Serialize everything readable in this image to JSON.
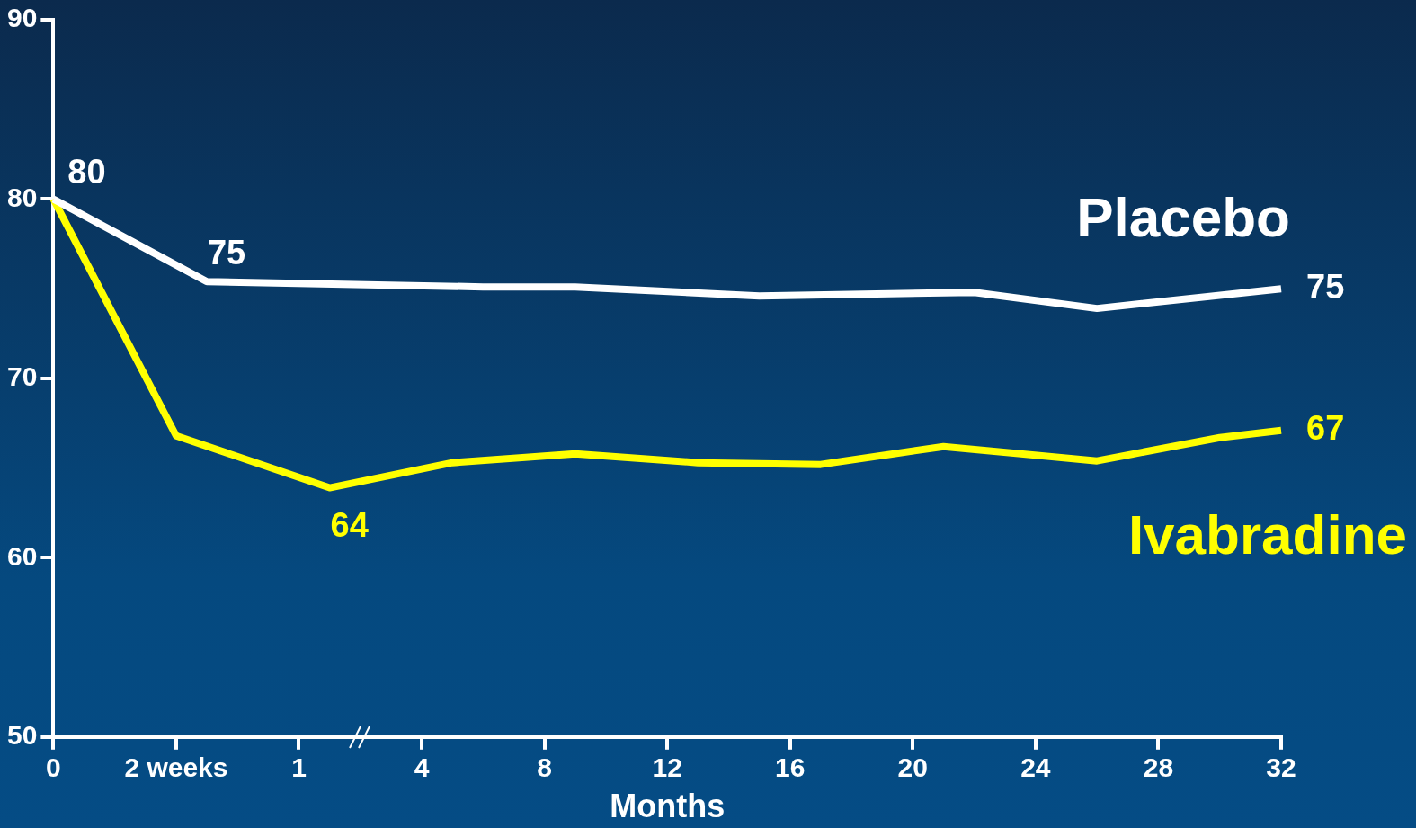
{
  "chart_data": {
    "type": "line",
    "xlabel": "Months",
    "categories": [
      "0",
      null,
      null,
      null,
      "2 weeks",
      null,
      null,
      null,
      "1",
      null,
      null,
      null,
      "4",
      null,
      null,
      null,
      "8",
      null,
      null,
      null,
      "12",
      null,
      null,
      null,
      "16",
      null,
      null,
      null,
      "20",
      null,
      null,
      null,
      "24",
      null,
      null,
      null,
      "28",
      null,
      null,
      null,
      "32"
    ],
    "ylim": [
      50,
      90
    ],
    "yticks": [
      50,
      60,
      70,
      80,
      90
    ],
    "grid": false,
    "marker": "none",
    "line_style": "solid",
    "series": [
      {
        "name": "Placebo",
        "color": "#ffffff",
        "values": [
          80,
          null,
          null,
          null,
          null,
          75.4,
          null,
          null,
          null,
          null,
          null,
          null,
          null,
          null,
          75.1,
          null,
          null,
          75.1,
          null,
          null,
          null,
          null,
          null,
          74.6,
          null,
          null,
          null,
          null,
          null,
          null,
          74.8,
          null,
          null,
          null,
          73.9,
          null,
          null,
          null,
          null,
          null,
          75.0
        ],
        "value_labels": [
          "80",
          null,
          null,
          null,
          null,
          "75",
          null,
          null,
          null,
          null,
          null,
          null,
          null,
          null,
          null,
          null,
          null,
          null,
          null,
          null,
          null,
          null,
          null,
          null,
          null,
          null,
          null,
          null,
          null,
          null,
          null,
          null,
          null,
          null,
          null,
          null,
          null,
          null,
          null,
          null,
          "75"
        ]
      },
      {
        "name": "Ivabradine",
        "color": "#ffff00",
        "values": [
          80,
          null,
          null,
          null,
          66.8,
          null,
          null,
          null,
          null,
          63.9,
          null,
          null,
          null,
          65.3,
          null,
          null,
          null,
          65.8,
          null,
          null,
          null,
          65.3,
          null,
          null,
          null,
          65.2,
          null,
          null,
          null,
          66.2,
          null,
          null,
          null,
          null,
          65.4,
          null,
          null,
          null,
          66.7,
          null,
          67.1
        ],
        "value_labels": [
          null,
          null,
          null,
          null,
          null,
          null,
          null,
          null,
          null,
          "64",
          null,
          null,
          null,
          null,
          null,
          null,
          null,
          null,
          null,
          null,
          null,
          null,
          null,
          null,
          null,
          null,
          null,
          null,
          null,
          null,
          null,
          null,
          null,
          null,
          null,
          null,
          null,
          null,
          null,
          null,
          "67"
        ]
      }
    ]
  }
}
